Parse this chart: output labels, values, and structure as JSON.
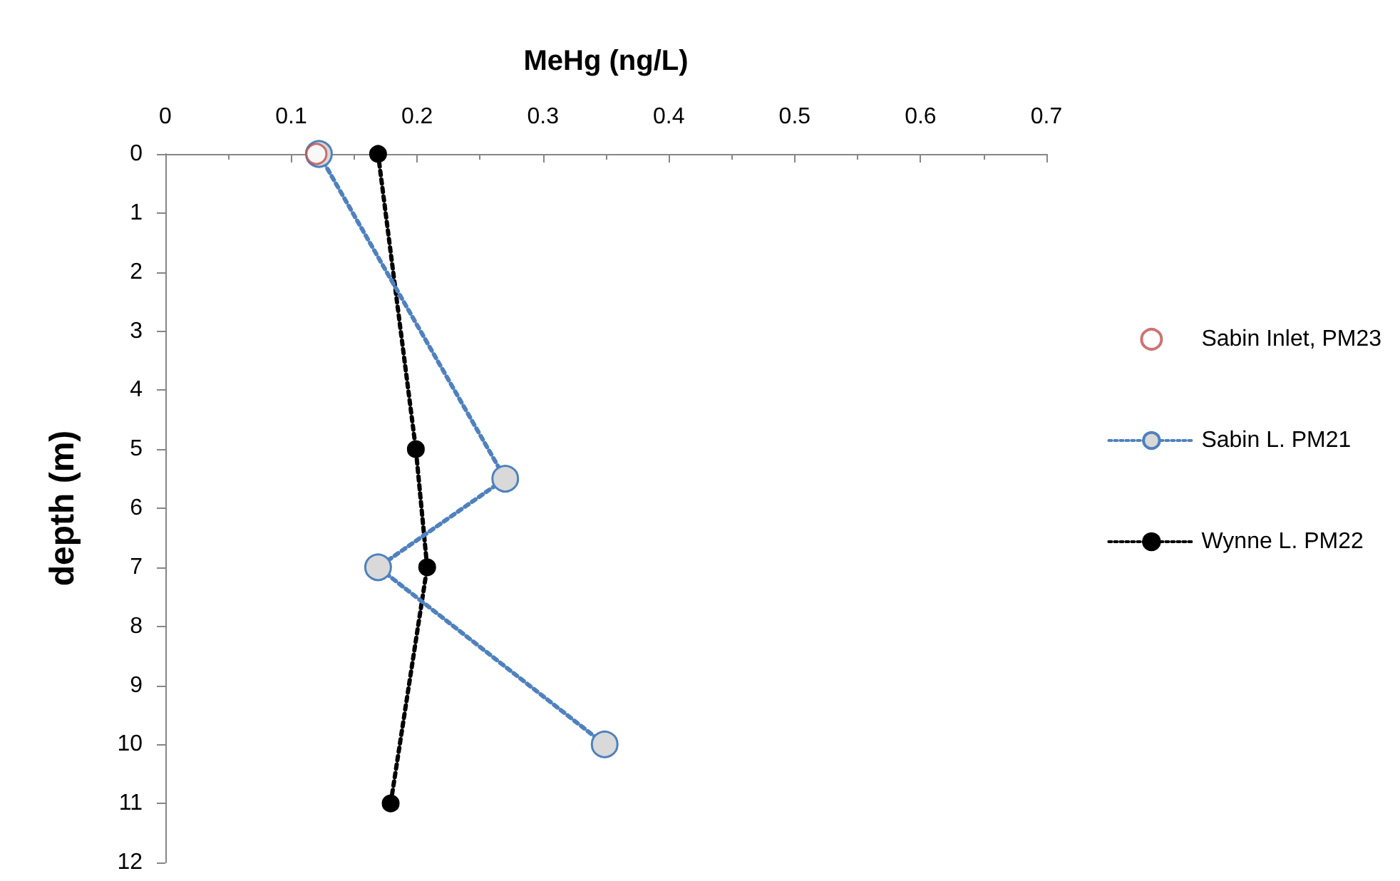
{
  "chart_data": {
    "type": "line",
    "xlabel": "MeHg (ng/L)",
    "ylabel": "depth (m)",
    "xlim": [
      0,
      0.7
    ],
    "xticks": [
      0,
      0.1,
      0.2,
      0.3,
      0.4,
      0.5,
      0.6,
      0.7
    ],
    "ylim": [
      12,
      0
    ],
    "yticks": [
      0,
      1,
      2,
      3,
      4,
      5,
      6,
      7,
      8,
      9,
      10,
      11,
      12
    ],
    "grid": false,
    "legend": "right",
    "series": [
      {
        "name": "Sabin Inlet, PM23",
        "type": "scatter",
        "color": "#c0504d",
        "marker": "circle",
        "x": [
          0.12
        ],
        "values": [
          0
        ]
      },
      {
        "name": "Sabin L. PM21",
        "type": "line",
        "color": "#4f81bd",
        "marker": "circle",
        "line_style": "dotted",
        "x": [
          0.122,
          0.27,
          0.169,
          0.349
        ],
        "values": [
          0,
          5.5,
          7,
          10
        ]
      },
      {
        "name": "Wynne L. PM22",
        "type": "line",
        "color": "#000000",
        "marker": "circle",
        "line_style": "dotted",
        "x": [
          0.169,
          0.199,
          0.208,
          0.179
        ],
        "values": [
          0,
          5,
          7,
          11
        ]
      }
    ]
  }
}
